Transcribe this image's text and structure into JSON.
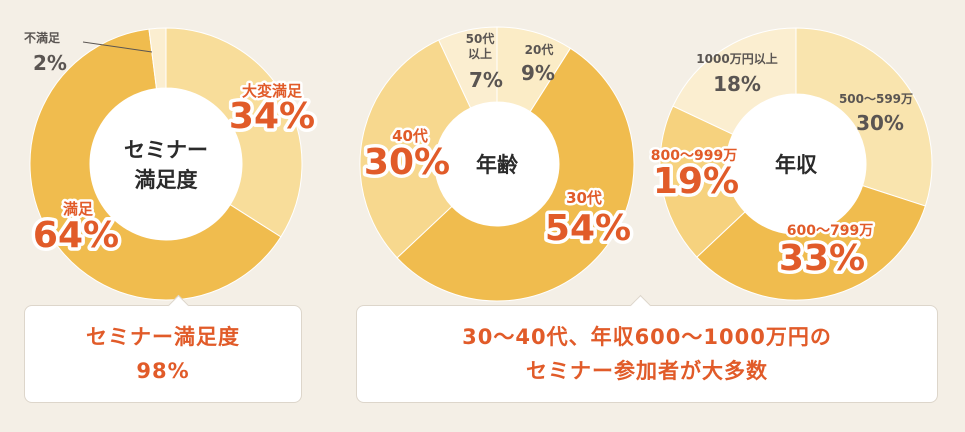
{
  "colors": {
    "background": "#f4efe6",
    "accent": "#e15b29",
    "label_dark": "#5a5552",
    "dark_gold": "#f0bc4e",
    "mid_gold": "#f6d27e",
    "light_gold": "#f9e4ae",
    "pale_gold": "#fbeed0"
  },
  "chart_data": [
    {
      "type": "pie",
      "center_label": [
        "セミナー",
        "満足度"
      ],
      "slices": [
        {
          "label": "大変満足",
          "value": 34,
          "display": "34%",
          "emphasis": true,
          "color": "#f8dd9a"
        },
        {
          "label": "満足",
          "value": 64,
          "display": "64%",
          "emphasis": true,
          "color": "#f0bc4e"
        },
        {
          "label": "不満足",
          "value": 2,
          "display": "2%",
          "emphasis": false,
          "color": "#fbeed0"
        }
      ]
    },
    {
      "type": "pie",
      "center_label": [
        "年齢"
      ],
      "slices": [
        {
          "label": "20代",
          "value": 9,
          "display": "9%",
          "emphasis": false,
          "color": "#fbecc6"
        },
        {
          "label": "30代",
          "value": 54,
          "display": "54%",
          "emphasis": true,
          "color": "#f0bc4e"
        },
        {
          "label": "40代",
          "value": 30,
          "display": "30%",
          "emphasis": true,
          "color": "#f7d88e"
        },
        {
          "label": "50代以上",
          "value": 7,
          "display": "7%",
          "emphasis": false,
          "color": "#fbeed0"
        }
      ]
    },
    {
      "type": "pie",
      "center_label": [
        "年収"
      ],
      "slices": [
        {
          "label": "500〜599万",
          "value": 30,
          "display": "30%",
          "emphasis": false,
          "color": "#f9e4ae"
        },
        {
          "label": "600〜799万",
          "value": 33,
          "display": "33%",
          "emphasis": true,
          "color": "#f0bc4e"
        },
        {
          "label": "800〜999万",
          "value": 19,
          "display": "19%",
          "emphasis": true,
          "color": "#f6d27e"
        },
        {
          "label": "1000万円以上",
          "value": 18,
          "display": "18%",
          "emphasis": false,
          "color": "#fbeed0"
        }
      ]
    }
  ],
  "callouts": [
    {
      "lines": [
        "セミナー満足度",
        "98%"
      ]
    },
    {
      "lines": [
        "30〜40代、年収600〜1000万円の",
        "セミナー参加者が大多数"
      ]
    }
  ]
}
